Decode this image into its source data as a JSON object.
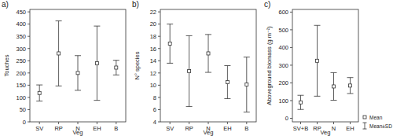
{
  "chart_data": [
    {
      "type": "errorbar",
      "title": "a)",
      "x_label": "Veg",
      "y_label": "Touches",
      "categories": [
        "SV",
        "RP",
        "N",
        "EH",
        "B"
      ],
      "series": [
        {
          "values": [
            118,
            280,
            200,
            240,
            222
          ],
          "errors": [
            33,
            133,
            71,
            152,
            30
          ]
        }
      ],
      "ylim": [
        0,
        460
      ],
      "yticks": [
        0,
        50,
        100,
        150,
        200,
        250,
        300,
        350,
        400,
        450
      ]
    },
    {
      "type": "errorbar",
      "title": "b)",
      "x_label": "Veg",
      "y_label": "N° species",
      "categories": [
        "SV",
        "RP",
        "N",
        "EH",
        "B"
      ],
      "series": [
        {
          "values": [
            16.8,
            12.3,
            15.2,
            10.5,
            10.1
          ],
          "errors": [
            3.2,
            5.8,
            3.1,
            2.7,
            4.5
          ]
        }
      ],
      "ylim": [
        4,
        22.4
      ],
      "yticks": [
        4,
        6,
        8,
        10,
        12,
        14,
        16,
        18,
        20,
        22
      ]
    },
    {
      "type": "errorbar",
      "title": "c)",
      "x_label": "Veg",
      "y_label": "Aboveground biomass (g m⁻²)",
      "categories": [
        "SV+B",
        "RP",
        "N",
        "EH"
      ],
      "series": [
        {
          "name": "Mean",
          "error_name": "Mean±SD",
          "values": [
            90,
            325,
            180,
            185
          ],
          "errors": [
            40,
            200,
            78,
            45
          ]
        }
      ],
      "ylim": [
        -20,
        615
      ],
      "yticks": [
        0,
        100,
        200,
        300,
        400,
        500,
        600
      ],
      "legend": "lower right"
    }
  ]
}
